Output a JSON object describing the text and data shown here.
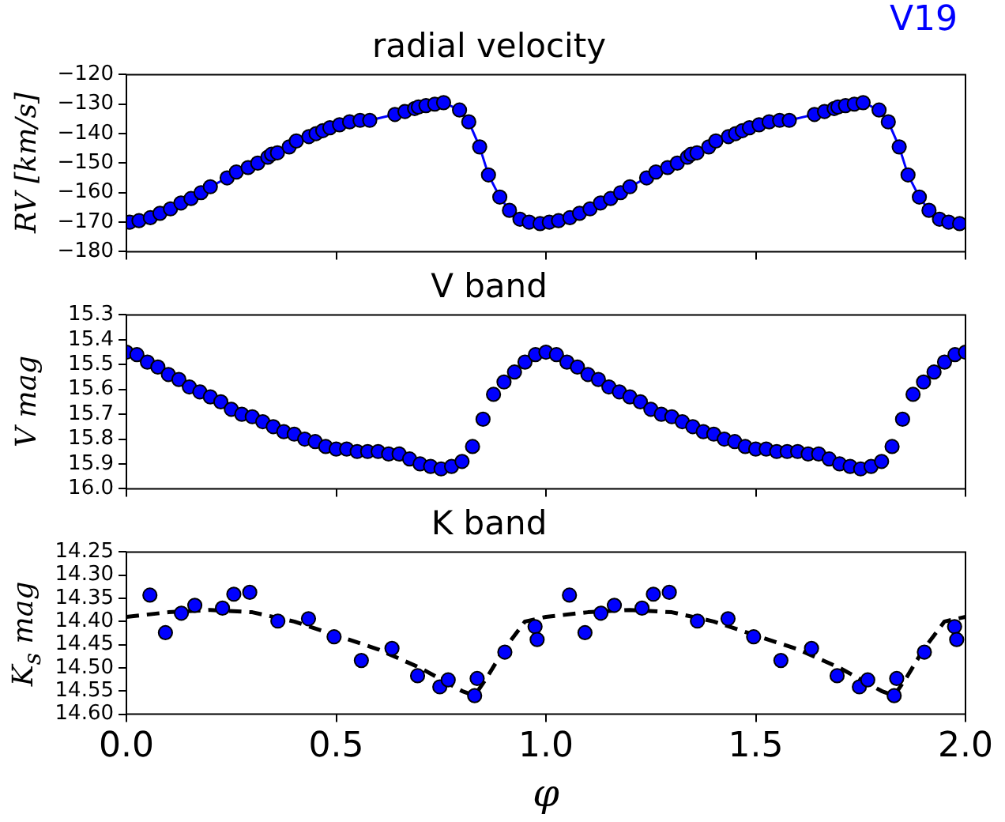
{
  "chart_data": [
    {
      "type": "line",
      "title": "radial velocity",
      "ylabel": "RV [km/s]",
      "annotations": [
        "V19"
      ],
      "xlim": [
        0,
        2
      ],
      "xticks": [
        {
          "value": 0,
          "label": null
        },
        {
          "value": 0.5,
          "label": null
        },
        {
          "value": 1,
          "label": null
        },
        {
          "value": 1.5,
          "label": null
        },
        {
          "value": 2,
          "label": null
        }
      ],
      "ylim": [
        -180,
        -120
      ],
      "yticks": [
        -180,
        -170,
        -160,
        -150,
        -140,
        -130,
        -120
      ],
      "tick_labels": "y",
      "grid": false,
      "legend": false,
      "marker": "circle",
      "series": [
        {
          "color": "#0000ff",
          "x": [
            0.008,
            0.03,
            0.057,
            0.08,
            0.105,
            0.13,
            0.154,
            0.178,
            0.2,
            0.24,
            0.262,
            0.29,
            0.313,
            0.337,
            0.346,
            0.36,
            0.388,
            0.405,
            0.435,
            0.452,
            0.468,
            0.485,
            0.508,
            0.532,
            0.557,
            0.58,
            0.64,
            0.664,
            0.687,
            0.696,
            0.714,
            0.735,
            0.756,
            0.794,
            0.816,
            0.842,
            0.863,
            0.89,
            0.913,
            0.938,
            0.96,
            0.986,
            1.008,
            1.03,
            1.057,
            1.08,
            1.105,
            1.13,
            1.154,
            1.178,
            1.2,
            1.24,
            1.262,
            1.29,
            1.313,
            1.337,
            1.346,
            1.36,
            1.388,
            1.405,
            1.435,
            1.452,
            1.468,
            1.485,
            1.508,
            1.532,
            1.557,
            1.58,
            1.64,
            1.664,
            1.687,
            1.696,
            1.714,
            1.735,
            1.756,
            1.794,
            1.816,
            1.842,
            1.863,
            1.89,
            1.913,
            1.938,
            1.96,
            1.986
          ],
          "values": [
            -170,
            -169.5,
            -168.5,
            -167,
            -165.5,
            -163.5,
            -162,
            -160,
            -158,
            -155,
            -153,
            -151.5,
            -150,
            -148,
            -147,
            -146.5,
            -144.5,
            -142.5,
            -141,
            -140,
            -139,
            -138,
            -137,
            -136,
            -135.5,
            -135.5,
            -133.5,
            -132.5,
            -131.5,
            -131,
            -130.5,
            -130,
            -129.5,
            -132,
            -136,
            -144.5,
            -154,
            -161.5,
            -166,
            -169,
            -170,
            -170.5,
            -170,
            -169.5,
            -168.5,
            -167,
            -165.5,
            -163.5,
            -162,
            -160,
            -158,
            -155,
            -153,
            -151.5,
            -150,
            -148,
            -147,
            -146.5,
            -144.5,
            -142.5,
            -141,
            -140,
            -139,
            -138,
            -137,
            -136,
            -135.5,
            -135.5,
            -133.5,
            -132.5,
            -131.5,
            -131,
            -130.5,
            -130,
            -129.5,
            -132,
            -136,
            -144.5,
            -154,
            -161.5,
            -166,
            -169,
            -170,
            -170.5
          ]
        }
      ]
    },
    {
      "type": "scatter",
      "title": "V band",
      "ylabel": "V mag",
      "xlim": [
        0,
        2
      ],
      "xticks": [
        {
          "value": 0,
          "label": null
        },
        {
          "value": 0.5,
          "label": null
        },
        {
          "value": 1,
          "label": null
        },
        {
          "value": 1.5,
          "label": null
        },
        {
          "value": 2,
          "label": null
        }
      ],
      "ylim": [
        16.0,
        15.3
      ],
      "yticks": [
        15.3,
        15.4,
        15.5,
        15.6,
        15.7,
        15.8,
        15.9,
        {
          "value": 16,
          "label": "16.0"
        }
      ],
      "tick_labels": "y",
      "grid": false,
      "legend": false,
      "marker": "circle",
      "series": [
        {
          "color": "#0000ff",
          "x": [
            0,
            0.025,
            0.05,
            0.075,
            0.1,
            0.125,
            0.15,
            0.175,
            0.2,
            0.225,
            0.25,
            0.275,
            0.3,
            0.325,
            0.35,
            0.375,
            0.4,
            0.425,
            0.45,
            0.475,
            0.5,
            0.525,
            0.55,
            0.575,
            0.6,
            0.625,
            0.65,
            0.675,
            0.7,
            0.725,
            0.75,
            0.775,
            0.8,
            0.825,
            0.85,
            0.875,
            0.9,
            0.925,
            0.95,
            0.975,
            1,
            1.025,
            1.05,
            1.075,
            1.1,
            1.125,
            1.15,
            1.175,
            1.2,
            1.225,
            1.25,
            1.275,
            1.3,
            1.325,
            1.35,
            1.375,
            1.4,
            1.425,
            1.45,
            1.475,
            1.5,
            1.525,
            1.55,
            1.575,
            1.6,
            1.625,
            1.65,
            1.675,
            1.7,
            1.725,
            1.75,
            1.775,
            1.8,
            1.825,
            1.85,
            1.875,
            1.9,
            1.925,
            1.95,
            1.975,
            2
          ],
          "values": [
            15.45,
            15.46,
            15.49,
            15.51,
            15.54,
            15.56,
            15.59,
            15.61,
            15.63,
            15.65,
            15.68,
            15.7,
            15.71,
            15.73,
            15.75,
            15.77,
            15.78,
            15.8,
            15.81,
            15.83,
            15.84,
            15.84,
            15.85,
            15.85,
            15.85,
            15.86,
            15.86,
            15.88,
            15.9,
            15.91,
            15.92,
            15.91,
            15.89,
            15.83,
            15.72,
            15.62,
            15.57,
            15.53,
            15.49,
            15.46,
            15.45,
            15.46,
            15.49,
            15.51,
            15.54,
            15.56,
            15.59,
            15.61,
            15.63,
            15.65,
            15.68,
            15.7,
            15.71,
            15.73,
            15.75,
            15.77,
            15.78,
            15.8,
            15.81,
            15.83,
            15.84,
            15.84,
            15.85,
            15.85,
            15.85,
            15.86,
            15.86,
            15.88,
            15.9,
            15.91,
            15.92,
            15.91,
            15.89,
            15.83,
            15.72,
            15.62,
            15.57,
            15.53,
            15.49,
            15.46,
            15.45
          ]
        }
      ]
    },
    {
      "type": "scatter",
      "title": "K band",
      "xlabel": "φ",
      "ylabel": "K$_{s}$ mag",
      "xlim": [
        0,
        2
      ],
      "xticks": [
        {
          "value": 0,
          "label": "0.0"
        },
        0.5,
        {
          "value": 1,
          "label": "1.0"
        },
        1.5,
        {
          "value": 2,
          "label": "2.0"
        }
      ],
      "ylim": [
        14.6,
        14.25
      ],
      "yticks": [
        14.25,
        {
          "value": 14.3,
          "label": "14.30"
        },
        14.35,
        {
          "value": 14.4,
          "label": "14.40"
        },
        14.45,
        {
          "value": 14.5,
          "label": "14.50"
        },
        14.55,
        {
          "value": 14.6,
          "label": "14.60"
        }
      ],
      "grid": false,
      "legend": false,
      "marker": "circle",
      "series": [
        {
          "color": "#0000ff",
          "x": [
            0.056,
            0.093,
            0.131,
            0.163,
            0.229,
            0.256,
            0.294,
            0.361,
            0.434,
            0.495,
            0.56,
            0.633,
            0.694,
            0.747,
            0.767,
            0.83,
            0.836,
            0.902,
            0.974,
            0.979,
            1.056,
            1.093,
            1.131,
            1.163,
            1.229,
            1.256,
            1.294,
            1.361,
            1.434,
            1.495,
            1.56,
            1.633,
            1.694,
            1.747,
            1.767,
            1.83,
            1.836,
            1.902,
            1.974,
            1.979
          ],
          "values": [
            14.343,
            14.424,
            14.382,
            14.365,
            14.371,
            14.341,
            14.337,
            14.399,
            14.394,
            14.433,
            14.484,
            14.458,
            14.517,
            14.541,
            14.526,
            14.56,
            14.523,
            14.466,
            14.411,
            14.439,
            14.343,
            14.424,
            14.382,
            14.365,
            14.371,
            14.341,
            14.337,
            14.399,
            14.394,
            14.433,
            14.484,
            14.458,
            14.517,
            14.541,
            14.526,
            14.56,
            14.523,
            14.466,
            14.411,
            14.439
          ]
        },
        {
          "type": "line",
          "color": "#000000",
          "marker": "none",
          "line_style": "dashed",
          "x": [
            0,
            0.1,
            0.2,
            0.3,
            0.4,
            0.5,
            0.6,
            0.7,
            0.8,
            0.83,
            0.86,
            0.9,
            0.95,
            1,
            1.1,
            1.2,
            1.3,
            1.4,
            1.5,
            1.6,
            1.7,
            1.8,
            1.83,
            1.86,
            1.9,
            1.95,
            2
          ],
          "values": [
            14.39,
            14.38,
            14.375,
            14.38,
            14.4,
            14.43,
            14.46,
            14.5,
            14.55,
            14.56,
            14.52,
            14.46,
            14.4,
            14.39,
            14.38,
            14.375,
            14.38,
            14.4,
            14.43,
            14.46,
            14.5,
            14.55,
            14.56,
            14.52,
            14.46,
            14.4,
            14.39
          ]
        }
      ]
    }
  ]
}
